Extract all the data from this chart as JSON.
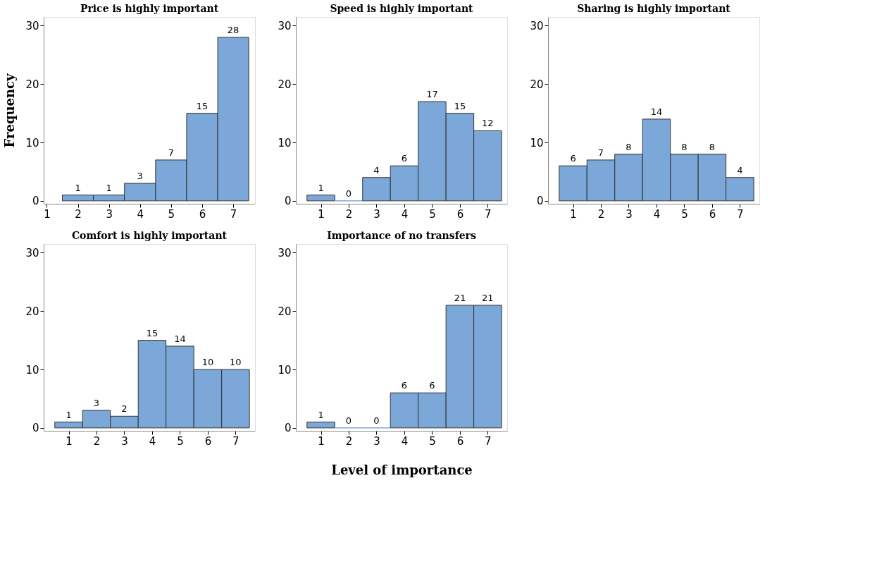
{
  "chart_data": [
    {
      "type": "histogram",
      "title": "Price is highly important",
      "ylabel": "Frequency",
      "bins": [
        1.5,
        2.5,
        3.5,
        4.5,
        5.5,
        6.5,
        7.5
      ],
      "values": [
        1,
        1,
        3,
        7,
        15,
        28
      ],
      "color": "#7ba7d9",
      "xlim": [
        0.9,
        7.7
      ],
      "xticks": [
        1,
        2,
        3,
        4,
        5,
        6,
        7
      ],
      "ylim": [
        -0.5,
        31.5
      ],
      "yticks": [
        0,
        10,
        20,
        30
      ],
      "data_labels": true
    },
    {
      "type": "histogram",
      "title": "Speed is highly important",
      "bins": [
        0.5,
        1.5,
        2.5,
        3.5,
        4.5,
        5.5,
        6.5,
        7.5
      ],
      "values": [
        1,
        0,
        4,
        6,
        17,
        15,
        12
      ],
      "color": "#7ba7d9",
      "xlim": [
        0.1,
        7.7
      ],
      "xticks": [
        1,
        2,
        3,
        4,
        5,
        6,
        7
      ],
      "ylim": [
        -0.5,
        31.5
      ],
      "yticks": [
        0,
        10,
        20,
        30
      ],
      "data_labels": true
    },
    {
      "type": "histogram",
      "title": "Sharing is highly important",
      "bins": [
        0.5,
        1.5,
        2.5,
        3.5,
        4.5,
        5.5,
        6.5,
        7.5
      ],
      "values": [
        6,
        7,
        8,
        14,
        8,
        8,
        4
      ],
      "color": "#7ba7d9",
      "xlim": [
        0.1,
        7.7
      ],
      "xticks": [
        1,
        2,
        3,
        4,
        5,
        6,
        7
      ],
      "ylim": [
        -0.5,
        31.5
      ],
      "yticks": [
        0,
        10,
        20,
        30
      ],
      "data_labels": true
    },
    {
      "type": "histogram",
      "title": "Comfort is highly important",
      "bins": [
        0.5,
        1.5,
        2.5,
        3.5,
        4.5,
        5.5,
        6.5,
        7.5
      ],
      "values": [
        1,
        3,
        2,
        15,
        14,
        10,
        10
      ],
      "color": "#7ba7d9",
      "xlim": [
        0.1,
        7.7
      ],
      "xticks": [
        1,
        2,
        3,
        4,
        5,
        6,
        7
      ],
      "ylim": [
        -0.5,
        31.5
      ],
      "yticks": [
        0,
        10,
        20,
        30
      ],
      "data_labels": true
    },
    {
      "type": "histogram",
      "title": "Importance of no transfers",
      "xlabel": "Level of importance",
      "bins": [
        0.5,
        1.5,
        2.5,
        3.5,
        4.5,
        5.5,
        6.5,
        7.5
      ],
      "values": [
        1,
        0,
        0,
        6,
        6,
        21,
        21
      ],
      "color": "#7ba7d9",
      "xlim": [
        0.1,
        7.7
      ],
      "xticks": [
        1,
        2,
        3,
        4,
        5,
        6,
        7
      ],
      "ylim": [
        -0.5,
        31.5
      ],
      "yticks": [
        0,
        10,
        20,
        30
      ],
      "data_labels": true
    }
  ]
}
